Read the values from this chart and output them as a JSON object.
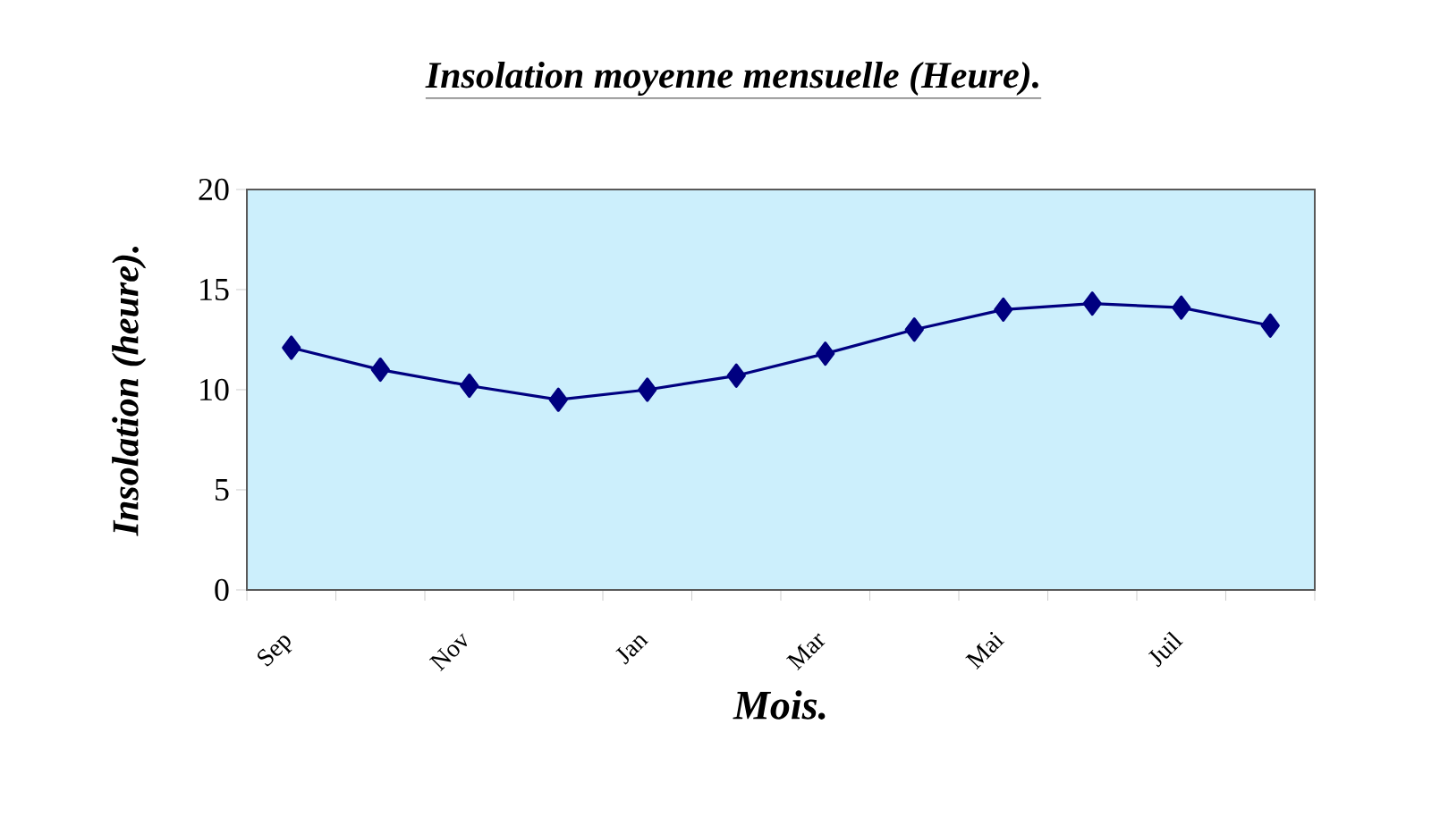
{
  "chart_data": {
    "type": "line",
    "title": "Insolation moyenne mensuelle (Heure).",
    "xlabel": "Mois.",
    "ylabel": "Insolation (heure).",
    "categories": [
      "Sep",
      null,
      "Nov",
      null,
      "Jan",
      null,
      "Mar",
      null,
      "Mai",
      null,
      "Juil",
      null
    ],
    "values": [
      12.1,
      11.0,
      10.2,
      9.5,
      10.0,
      10.7,
      11.8,
      13.0,
      14.0,
      14.3,
      14.1,
      13.2
    ],
    "color": "#000080",
    "ylim": [
      0,
      20
    ],
    "yticks": [
      0,
      5,
      10,
      15,
      20
    ],
    "marker": "diamond",
    "line_style": "solid"
  }
}
